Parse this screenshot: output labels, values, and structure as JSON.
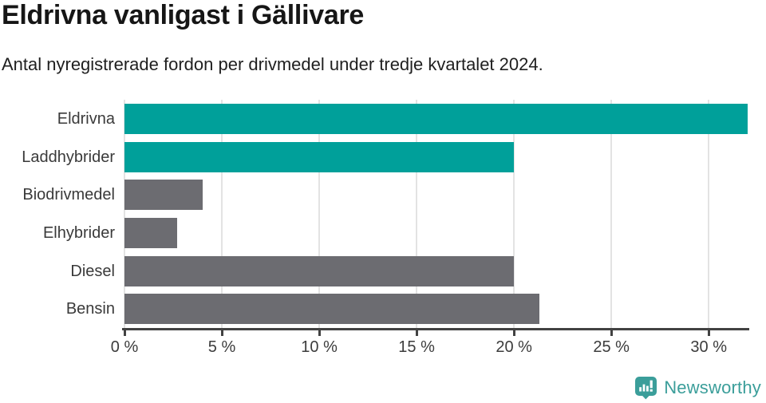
{
  "header": {
    "title": "Eldrivna vanligast i Gällivare",
    "subtitle": "Antal nyregistrerade fordon per drivmedel under tredje kvartalet 2024."
  },
  "chart_data": {
    "type": "bar",
    "orientation": "horizontal",
    "title": "Eldrivna vanligast i Gällivare",
    "subtitle": "Antal nyregistrerade fordon per drivmedel under tredje kvartalet 2024.",
    "categories": [
      "Eldrivna",
      "Laddhybrider",
      "Biodrivmedel",
      "Elhybrider",
      "Diesel",
      "Bensin"
    ],
    "values": [
      32,
      20,
      4,
      2.7,
      20,
      21.3
    ],
    "unit": "%",
    "xlabel": "",
    "ylabel": "",
    "xlim": [
      0,
      32
    ],
    "xticks": [
      0,
      5,
      10,
      15,
      20,
      25,
      30
    ],
    "xtick_labels": [
      "0 %",
      "5 %",
      "10 %",
      "15 %",
      "20 %",
      "25 %",
      "30 %"
    ],
    "grid": true,
    "legend": false,
    "bar_colors": {
      "highlight": "#00a09a",
      "default": "#6c6c71"
    },
    "highlight_indices": [
      0,
      1
    ],
    "gridline_color": "#e3e3e3",
    "axis_color": "#424242"
  },
  "footer": {
    "brand": "Newsworthy",
    "brand_color": "#3b9e9a",
    "logo_icon": "newsworthy-speech-bubble-barchart-icon"
  }
}
